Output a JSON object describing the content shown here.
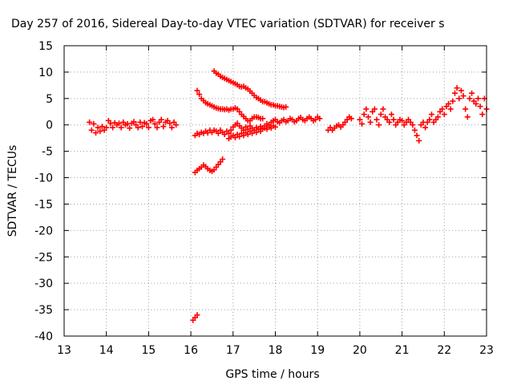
{
  "chart_data": {
    "type": "scatter",
    "title": "Day 257 of 2016, Sidereal Day-to-day VTEC variation (SDTVAR) for receiver s",
    "xlabel": "GPS time / hours",
    "ylabel": "SDTVAR / TECUs",
    "xlim": [
      13,
      23
    ],
    "ylim": [
      -40,
      15
    ],
    "xticks": [
      13,
      14,
      15,
      16,
      17,
      18,
      19,
      20,
      21,
      22,
      23
    ],
    "yticks": [
      15,
      10,
      5,
      0,
      -5,
      -10,
      -15,
      -20,
      -25,
      -30,
      -35,
      -40
    ],
    "grid": true,
    "marker": "+",
    "color": "#ff0000",
    "series": [
      {
        "points": [
          [
            13.6,
            0.5
          ],
          [
            13.65,
            -1.0
          ],
          [
            13.7,
            0.2
          ],
          [
            13.75,
            -1.5
          ],
          [
            13.8,
            -0.5
          ],
          [
            13.85,
            -1.2
          ],
          [
            13.9,
            -0.3
          ],
          [
            13.95,
            -1.0
          ],
          [
            14.0,
            -0.5
          ],
          [
            14.05,
            0.8
          ],
          [
            14.1,
            0.3
          ],
          [
            14.15,
            -0.5
          ],
          [
            14.2,
            0.4
          ],
          [
            14.25,
            0.0
          ],
          [
            14.3,
            0.3
          ],
          [
            14.35,
            -0.5
          ],
          [
            14.4,
            0.5
          ],
          [
            14.45,
            0.0
          ],
          [
            14.5,
            0.2
          ],
          [
            14.55,
            -0.6
          ],
          [
            14.6,
            0.3
          ],
          [
            14.65,
            0.6
          ],
          [
            14.7,
            0.0
          ],
          [
            14.75,
            -0.5
          ],
          [
            14.8,
            0.5
          ],
          [
            14.85,
            -0.3
          ],
          [
            14.9,
            0.4
          ],
          [
            14.95,
            0.2
          ],
          [
            15.0,
            -0.5
          ],
          [
            15.05,
            0.8
          ],
          [
            15.1,
            1.0
          ],
          [
            15.15,
            0.2
          ],
          [
            15.2,
            -0.5
          ],
          [
            15.25,
            0.5
          ],
          [
            15.3,
            1.0
          ],
          [
            15.35,
            -0.3
          ],
          [
            15.4,
            0.5
          ],
          [
            15.45,
            0.8
          ],
          [
            15.5,
            0.3
          ],
          [
            15.55,
            -0.5
          ],
          [
            15.6,
            0.5
          ],
          [
            15.65,
            0.0
          ]
        ]
      },
      {
        "points": [
          [
            16.1,
            -9.0
          ],
          [
            16.15,
            -8.6
          ],
          [
            16.2,
            -8.3
          ],
          [
            16.25,
            -8.0
          ],
          [
            16.3,
            -7.6
          ],
          [
            16.35,
            -7.9
          ],
          [
            16.4,
            -8.3
          ],
          [
            16.45,
            -8.6
          ],
          [
            16.5,
            -8.8
          ],
          [
            16.55,
            -8.5
          ],
          [
            16.6,
            -8.0
          ],
          [
            16.65,
            -7.5
          ],
          [
            16.7,
            -7.0
          ],
          [
            16.75,
            -6.5
          ]
        ]
      },
      {
        "points": [
          [
            16.05,
            -37.0
          ],
          [
            16.1,
            -36.5
          ],
          [
            16.15,
            -36.0
          ]
        ]
      },
      {
        "points": [
          [
            16.15,
            6.5
          ],
          [
            16.2,
            5.8
          ],
          [
            16.25,
            5.0
          ],
          [
            16.3,
            4.6
          ],
          [
            16.35,
            4.2
          ],
          [
            16.4,
            4.0
          ],
          [
            16.45,
            3.8
          ],
          [
            16.5,
            3.6
          ],
          [
            16.55,
            3.4
          ],
          [
            16.6,
            3.2
          ],
          [
            16.65,
            3.1
          ],
          [
            16.7,
            3.0
          ],
          [
            16.75,
            3.0
          ],
          [
            16.8,
            2.9
          ],
          [
            16.85,
            3.0
          ],
          [
            16.9,
            2.8
          ],
          [
            16.95,
            3.0
          ],
          [
            17.0,
            3.0
          ],
          [
            17.05,
            3.2
          ],
          [
            17.1,
            3.0
          ],
          [
            17.15,
            2.5
          ],
          [
            17.2,
            2.0
          ],
          [
            17.25,
            1.6
          ],
          [
            17.3,
            1.2
          ],
          [
            17.35,
            0.8
          ],
          [
            17.4,
            0.8
          ],
          [
            17.45,
            1.2
          ],
          [
            17.5,
            1.5
          ],
          [
            17.55,
            1.5
          ],
          [
            17.6,
            1.4
          ],
          [
            17.65,
            1.2
          ],
          [
            17.7,
            1.2
          ]
        ]
      },
      {
        "points": [
          [
            16.55,
            10.2
          ],
          [
            16.6,
            9.8
          ],
          [
            16.65,
            9.6
          ],
          [
            16.7,
            9.2
          ],
          [
            16.75,
            9.0
          ],
          [
            16.8,
            8.8
          ],
          [
            16.85,
            8.6
          ],
          [
            16.9,
            8.4
          ],
          [
            16.95,
            8.2
          ],
          [
            17.0,
            8.0
          ],
          [
            17.05,
            7.8
          ],
          [
            17.1,
            7.6
          ],
          [
            17.15,
            7.3
          ],
          [
            17.2,
            7.2
          ],
          [
            17.25,
            7.3
          ],
          [
            17.3,
            7.0
          ],
          [
            17.35,
            6.8
          ],
          [
            17.4,
            6.4
          ],
          [
            17.45,
            6.0
          ],
          [
            17.5,
            5.6
          ],
          [
            17.55,
            5.2
          ],
          [
            17.6,
            5.0
          ],
          [
            17.65,
            4.7
          ],
          [
            17.7,
            4.4
          ],
          [
            17.75,
            4.4
          ],
          [
            17.8,
            4.2
          ],
          [
            17.85,
            4.0
          ],
          [
            17.9,
            3.8
          ],
          [
            17.95,
            3.8
          ],
          [
            18.0,
            3.6
          ],
          [
            18.05,
            3.6
          ],
          [
            18.1,
            3.5
          ],
          [
            18.15,
            3.4
          ],
          [
            18.2,
            3.3
          ],
          [
            18.25,
            3.4
          ]
        ]
      },
      {
        "points": [
          [
            16.1,
            -2.0
          ],
          [
            16.15,
            -1.6
          ],
          [
            16.2,
            -1.8
          ],
          [
            16.25,
            -1.4
          ],
          [
            16.3,
            -1.6
          ],
          [
            16.35,
            -1.2
          ],
          [
            16.4,
            -1.5
          ],
          [
            16.45,
            -1.0
          ],
          [
            16.5,
            -1.4
          ],
          [
            16.55,
            -1.0
          ],
          [
            16.6,
            -1.2
          ],
          [
            16.65,
            -1.6
          ],
          [
            16.7,
            -1.0
          ],
          [
            16.75,
            -1.4
          ],
          [
            16.8,
            -1.8
          ],
          [
            16.85,
            -1.2
          ],
          [
            16.9,
            -1.6
          ],
          [
            16.95,
            -1.0
          ],
          [
            17.0,
            -0.4
          ],
          [
            17.05,
            0.0
          ],
          [
            17.1,
            0.3
          ],
          [
            17.15,
            -0.2
          ],
          [
            17.2,
            -0.6
          ],
          [
            17.25,
            -1.0
          ],
          [
            17.3,
            -0.4
          ],
          [
            17.35,
            -0.8
          ],
          [
            17.4,
            -0.2
          ],
          [
            17.45,
            -0.6
          ],
          [
            17.5,
            -1.0
          ],
          [
            17.55,
            -0.5
          ],
          [
            17.6,
            -0.8
          ],
          [
            17.65,
            -0.3
          ],
          [
            17.7,
            -0.6
          ],
          [
            17.75,
            -0.2
          ],
          [
            17.8,
            0.2
          ],
          [
            17.85,
            0.0
          ],
          [
            17.9,
            0.5
          ],
          [
            17.95,
            0.8
          ],
          [
            18.0,
            1.0
          ],
          [
            18.05,
            0.6
          ],
          [
            18.1,
            0.4
          ],
          [
            18.15,
            0.8
          ],
          [
            18.2,
            1.0
          ],
          [
            18.25,
            0.6
          ],
          [
            18.3,
            0.8
          ],
          [
            18.35,
            1.2
          ],
          [
            18.4,
            1.0
          ],
          [
            18.45,
            0.6
          ],
          [
            18.5,
            0.8
          ],
          [
            18.55,
            1.2
          ],
          [
            18.6,
            1.4
          ],
          [
            18.65,
            1.0
          ],
          [
            18.7,
            0.8
          ],
          [
            18.75,
            1.2
          ],
          [
            18.8,
            1.5
          ],
          [
            18.85,
            1.2
          ],
          [
            18.9,
            0.8
          ],
          [
            18.95,
            1.0
          ],
          [
            19.0,
            1.5
          ],
          [
            19.05,
            1.2
          ]
        ]
      },
      {
        "points": [
          [
            16.9,
            -2.6
          ],
          [
            16.95,
            -2.3
          ],
          [
            17.0,
            -2.0
          ],
          [
            17.05,
            -2.4
          ],
          [
            17.1,
            -1.8
          ],
          [
            17.15,
            -2.2
          ],
          [
            17.2,
            -1.6
          ],
          [
            17.25,
            -2.0
          ],
          [
            17.3,
            -1.5
          ],
          [
            17.35,
            -1.8
          ],
          [
            17.4,
            -1.2
          ],
          [
            17.45,
            -1.6
          ],
          [
            17.5,
            -1.0
          ],
          [
            17.55,
            -1.4
          ],
          [
            17.6,
            -0.8
          ],
          [
            17.65,
            -1.2
          ],
          [
            17.7,
            -0.8
          ],
          [
            17.75,
            -0.6
          ],
          [
            17.8,
            -0.8
          ],
          [
            17.85,
            -0.4
          ],
          [
            17.9,
            -0.6
          ],
          [
            17.95,
            -0.2
          ],
          [
            18.0,
            -0.4
          ]
        ]
      },
      {
        "points": [
          [
            19.25,
            -1.0
          ],
          [
            19.3,
            -0.5
          ],
          [
            19.35,
            -1.0
          ],
          [
            19.4,
            -0.6
          ],
          [
            19.45,
            -0.2
          ],
          [
            19.5,
            0.0
          ],
          [
            19.55,
            -0.4
          ],
          [
            19.6,
            0.0
          ],
          [
            19.65,
            0.5
          ],
          [
            19.7,
            1.0
          ],
          [
            19.75,
            1.5
          ],
          [
            19.8,
            1.2
          ],
          [
            20.0,
            1.0
          ],
          [
            20.05,
            0.2
          ],
          [
            20.1,
            2.0
          ],
          [
            20.15,
            3.0
          ],
          [
            20.2,
            1.5
          ],
          [
            20.25,
            0.5
          ],
          [
            20.3,
            2.5
          ],
          [
            20.35,
            3.0
          ],
          [
            20.4,
            1.0
          ],
          [
            20.45,
            0.0
          ],
          [
            20.5,
            2.0
          ],
          [
            20.55,
            3.0
          ],
          [
            20.6,
            1.5
          ],
          [
            20.65,
            1.0
          ],
          [
            20.7,
            0.5
          ],
          [
            20.75,
            2.0
          ],
          [
            20.8,
            1.0
          ],
          [
            20.85,
            0.0
          ],
          [
            20.9,
            0.5
          ],
          [
            20.95,
            1.0
          ],
          [
            21.0,
            0.8
          ],
          [
            21.05,
            0.0
          ],
          [
            21.1,
            0.5
          ],
          [
            21.15,
            1.0
          ],
          [
            21.2,
            0.5
          ],
          [
            21.25,
            0.0
          ],
          [
            21.3,
            -1.0
          ],
          [
            21.35,
            -2.0
          ],
          [
            21.4,
            -3.0
          ],
          [
            21.45,
            0.0
          ],
          [
            21.5,
            0.5
          ],
          [
            21.55,
            -0.5
          ],
          [
            21.6,
            0.5
          ],
          [
            21.65,
            1.0
          ],
          [
            21.7,
            2.0
          ],
          [
            21.75,
            0.5
          ],
          [
            21.8,
            1.0
          ],
          [
            21.85,
            1.5
          ],
          [
            21.9,
            2.5
          ],
          [
            21.95,
            3.0
          ],
          [
            22.0,
            2.0
          ],
          [
            22.05,
            3.5
          ],
          [
            22.1,
            4.0
          ],
          [
            22.15,
            3.0
          ],
          [
            22.2,
            4.5
          ],
          [
            22.25,
            6.0
          ],
          [
            22.3,
            7.0
          ],
          [
            22.35,
            5.0
          ],
          [
            22.4,
            6.5
          ],
          [
            22.45,
            5.5
          ],
          [
            22.5,
            3.0
          ],
          [
            22.55,
            1.5
          ],
          [
            22.6,
            5.0
          ],
          [
            22.65,
            6.0
          ],
          [
            22.7,
            4.5
          ],
          [
            22.75,
            4.0
          ],
          [
            22.8,
            5.0
          ],
          [
            22.85,
            3.5
          ],
          [
            22.9,
            2.0
          ],
          [
            22.95,
            5.0
          ],
          [
            23.0,
            3.0
          ]
        ]
      }
    ]
  }
}
